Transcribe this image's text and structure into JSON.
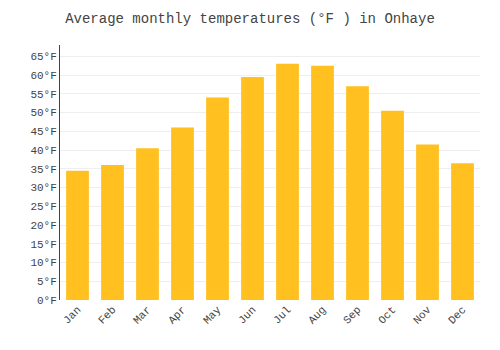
{
  "chart_data": {
    "type": "bar",
    "title": "Average monthly temperatures (°F ) in Onhaye",
    "categories": [
      "Jan",
      "Feb",
      "Mar",
      "Apr",
      "May",
      "Jun",
      "Jul",
      "Aug",
      "Sep",
      "Oct",
      "Nov",
      "Dec"
    ],
    "values": [
      34.5,
      36.0,
      40.5,
      46.0,
      54.0,
      59.5,
      63.0,
      62.5,
      57.0,
      50.5,
      41.5,
      36.5
    ],
    "color": "#FFC020",
    "ylim": [
      0,
      68
    ],
    "yticks": [
      {
        "value": 0,
        "label": "0°F"
      },
      {
        "value": 5,
        "label": "5°F"
      },
      {
        "value": 10,
        "label": "10°F"
      },
      {
        "value": 15,
        "label": "15°F"
      },
      {
        "value": 20,
        "label": "20°F"
      },
      {
        "value": 25,
        "label": "25°F"
      },
      {
        "value": 30,
        "label": "30°F"
      },
      {
        "value": 35,
        "label": "35°F"
      },
      {
        "value": 40,
        "label": "40°F"
      },
      {
        "value": 45,
        "label": "45°F"
      },
      {
        "value": 50,
        "label": "50°F"
      },
      {
        "value": 55,
        "label": "55°F"
      },
      {
        "value": 60,
        "label": "60°F"
      },
      {
        "value": 65,
        "label": "65°F"
      }
    ],
    "grid": true
  }
}
